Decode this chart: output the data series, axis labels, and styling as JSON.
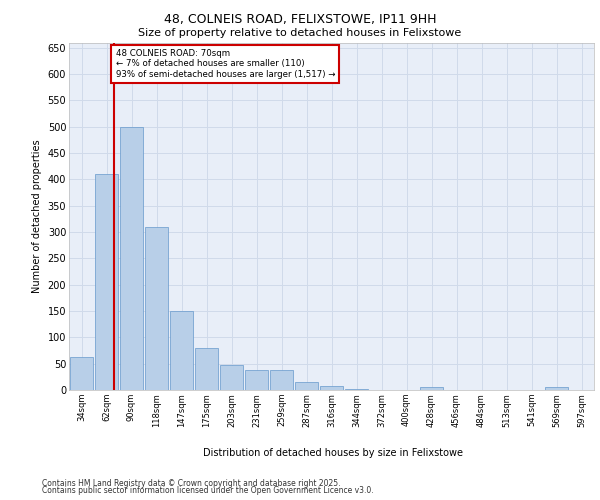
{
  "title_line1": "48, COLNEIS ROAD, FELIXSTOWE, IP11 9HH",
  "title_line2": "Size of property relative to detached houses in Felixstowe",
  "xlabel": "Distribution of detached houses by size in Felixstowe",
  "ylabel": "Number of detached properties",
  "categories": [
    "34sqm",
    "62sqm",
    "90sqm",
    "118sqm",
    "147sqm",
    "175sqm",
    "203sqm",
    "231sqm",
    "259sqm",
    "287sqm",
    "316sqm",
    "344sqm",
    "372sqm",
    "400sqm",
    "428sqm",
    "456sqm",
    "484sqm",
    "513sqm",
    "541sqm",
    "569sqm",
    "597sqm"
  ],
  "values": [
    62,
    410,
    500,
    310,
    150,
    80,
    47,
    38,
    38,
    15,
    8,
    2,
    0,
    0,
    5,
    0,
    0,
    0,
    0,
    5,
    0
  ],
  "bar_color": "#b8cfe8",
  "bar_edge_color": "#6699cc",
  "grid_color": "#d0daea",
  "background_color": "#e8eef8",
  "annotation_text": "48 COLNEIS ROAD: 70sqm\n← 7% of detached houses are smaller (110)\n93% of semi-detached houses are larger (1,517) →",
  "annotation_box_color": "#ffffff",
  "annotation_border_color": "#cc0000",
  "ylim": [
    0,
    660
  ],
  "yticks": [
    0,
    50,
    100,
    150,
    200,
    250,
    300,
    350,
    400,
    450,
    500,
    550,
    600,
    650
  ],
  "footer_line1": "Contains HM Land Registry data © Crown copyright and database right 2025.",
  "footer_line2": "Contains public sector information licensed under the Open Government Licence v3.0."
}
